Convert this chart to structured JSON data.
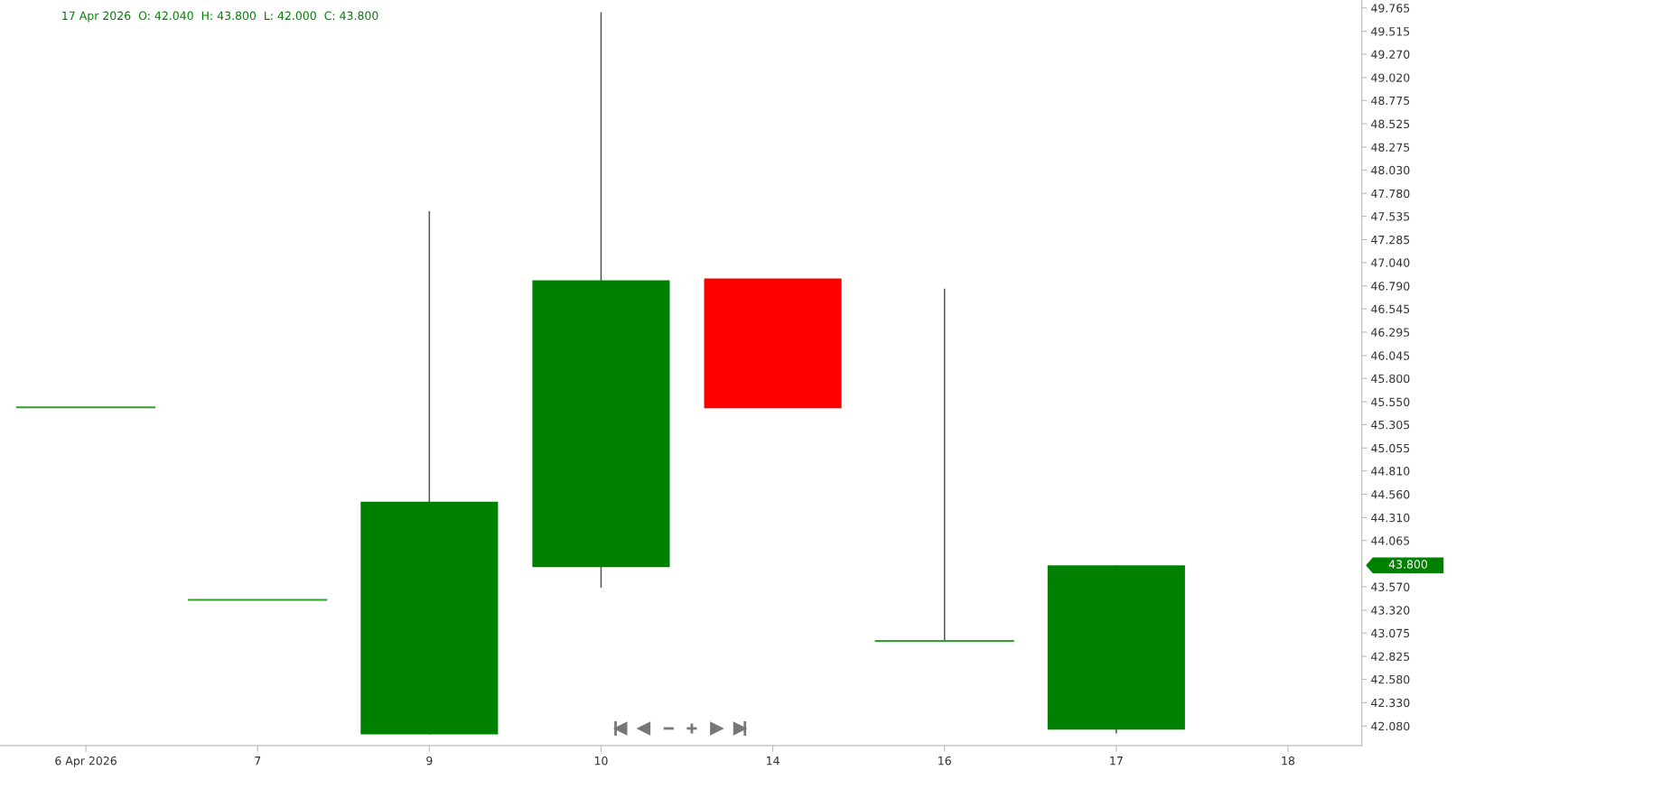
{
  "chart_data": {
    "type": "candlestick",
    "title": "17 Apr 2026  O: 42.040  H: 43.800  L: 42.000  C: 43.800",
    "categories": [
      "6 Apr 2026",
      "7",
      "9",
      "10",
      "14",
      "16",
      "17",
      "18"
    ],
    "ohlc": [
      [
        45.49,
        45.49,
        45.49,
        45.49
      ],
      [
        43.43,
        43.43,
        43.43,
        43.43
      ],
      [
        41.99,
        47.59,
        41.99,
        44.48
      ],
      [
        43.78,
        49.72,
        43.56,
        46.85
      ],
      [
        46.87,
        46.87,
        45.48,
        45.48
      ],
      [
        42.99,
        46.76,
        42.99,
        42.99
      ],
      [
        42.04,
        43.8,
        42.0,
        43.8
      ],
      null
    ],
    "colors": [
      "#33a02c",
      "#33a02c",
      "#008000",
      "#008000",
      "#ff0000",
      "#33a02c",
      "#008000",
      null
    ],
    "ylim": [
      41.87,
      49.85
    ],
    "yticks": [
      49.765,
      49.515,
      {
        "value": 49.27,
        "label": "49.270"
      },
      {
        "value": 49.02,
        "label": "49.020"
      },
      48.775,
      48.525,
      48.275,
      {
        "value": 48.03,
        "label": "48.030"
      },
      {
        "value": 47.78,
        "label": "47.780"
      },
      47.535,
      47.285,
      {
        "value": 47.04,
        "label": "47.040"
      },
      {
        "value": 46.79,
        "label": "46.790"
      },
      46.545,
      46.295,
      46.045,
      {
        "value": 45.8,
        "label": "45.800"
      },
      {
        "value": 45.55,
        "label": "45.550"
      },
      45.305,
      45.055,
      {
        "value": 44.81,
        "label": "44.810"
      },
      {
        "value": 44.56,
        "label": "44.560"
      },
      {
        "value": 44.31,
        "label": "44.310"
      },
      44.065,
      {
        "value": 43.57,
        "label": "43.570"
      },
      {
        "value": 43.32,
        "label": "43.320"
      },
      43.075,
      42.825,
      {
        "value": 42.58,
        "label": "42.580"
      },
      {
        "value": 42.33,
        "label": "42.330"
      },
      {
        "value": 42.08,
        "label": "42.080"
      }
    ],
    "annotations": [
      "43.800"
    ]
  }
}
